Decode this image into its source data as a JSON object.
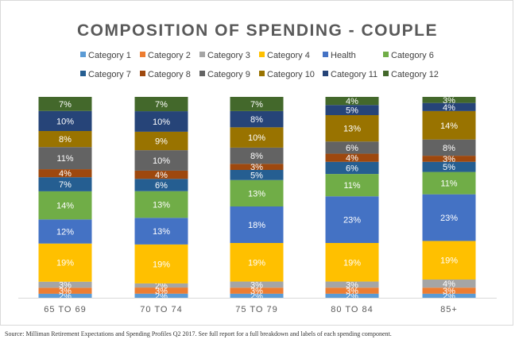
{
  "chart_data": {
    "type": "bar",
    "stacked": true,
    "title": "COMPOSITION OF SPENDING - COUPLE",
    "xlabel": "",
    "ylabel": "",
    "ylim": [
      0,
      100
    ],
    "grid": false,
    "legend_position": "top",
    "categories": [
      "65 TO 69",
      "70 TO 74",
      "75 TO 79",
      "80 TO 84",
      "85+"
    ],
    "series": [
      {
        "name": "Category 1",
        "color": "#5b9bd5",
        "values": [
          2,
          2,
          2,
          2,
          2
        ],
        "labels": [
          "2%",
          "2%",
          "2%",
          "2%",
          "2%"
        ]
      },
      {
        "name": "Category 2",
        "color": "#ed7d31",
        "values": [
          3,
          3,
          3,
          3,
          3
        ],
        "labels": [
          "3%",
          "3%",
          "3%",
          "3%",
          "3%"
        ]
      },
      {
        "name": "Category 3",
        "color": "#a5a5a5",
        "values": [
          3,
          2,
          3,
          3,
          4
        ],
        "labels": [
          "3%",
          "2%",
          "3%",
          "3%",
          "4%"
        ]
      },
      {
        "name": "Category 4",
        "color": "#ffc000",
        "values": [
          19,
          19,
          19,
          19,
          19
        ],
        "labels": [
          "19%",
          "19%",
          "19%",
          "19%",
          "19%"
        ]
      },
      {
        "name": "Health",
        "color": "#4472c4",
        "values": [
          12,
          13,
          18,
          23,
          23
        ],
        "labels": [
          "12%",
          "13%",
          "18%",
          "23%",
          "23%"
        ]
      },
      {
        "name": "Category 6",
        "color": "#70ad47",
        "values": [
          14,
          13,
          13,
          11,
          11
        ],
        "labels": [
          "14%",
          "13%",
          "13%",
          "11%",
          "11%"
        ]
      },
      {
        "name": "Category 7",
        "color": "#255e91",
        "values": [
          7,
          6,
          5,
          6,
          5
        ],
        "labels": [
          "7%",
          "6%",
          "5%",
          "6%",
          "5%"
        ]
      },
      {
        "name": "Category 8",
        "color": "#9e480e",
        "values": [
          4,
          4,
          3,
          4,
          3
        ],
        "labels": [
          "4%",
          "4%",
          "3%",
          "4%",
          "3%"
        ]
      },
      {
        "name": "Category 9",
        "color": "#636363",
        "values": [
          11,
          10,
          8,
          6,
          8
        ],
        "labels": [
          "11%",
          "10%",
          "8%",
          "6%",
          "8%"
        ]
      },
      {
        "name": "Category 10",
        "color": "#997300",
        "values": [
          8,
          9,
          10,
          13,
          14
        ],
        "labels": [
          "8%",
          "9%",
          "10%",
          "13%",
          "14%"
        ]
      },
      {
        "name": "Category 11",
        "color": "#264478",
        "values": [
          10,
          10,
          8,
          5,
          4
        ],
        "labels": [
          "10%",
          "10%",
          "8%",
          "5%",
          "4%"
        ]
      },
      {
        "name": "Category 12",
        "color": "#43682b",
        "values": [
          7,
          7,
          7,
          4,
          3
        ],
        "labels": [
          "7%",
          "7%",
          "7%",
          "4%",
          "3%"
        ]
      }
    ]
  },
  "source_note": "Source: Milliman Retirement Expectations and Spending Profiles Q2 2017. See full report for a full breakdown and labels of each spending component."
}
